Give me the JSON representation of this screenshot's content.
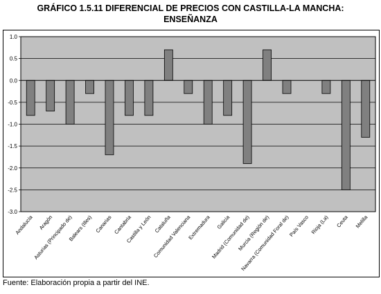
{
  "title_line1": "GRÁFICO 1.5.11 DIFERENCIAL DE PRECIOS CON CASTILLA-LA MANCHA:",
  "title_line2": "ENSEÑANZA",
  "source": "Fuente: Elaboración propia a partir del INE.",
  "colors": {
    "plot_bg": "#c0c0c0",
    "bar": "#808080",
    "axis": "#000000"
  },
  "chart_data": {
    "type": "bar",
    "title": "GRÁFICO 1.5.11 DIFERENCIAL DE PRECIOS CON CASTILLA-LA MANCHA: ENSEÑANZA",
    "xlabel": "",
    "ylabel": "",
    "ylim": [
      -3.0,
      1.0
    ],
    "yticks": [
      1.0,
      0.5,
      0.0,
      -0.5,
      -1.0,
      -1.5,
      -2.0,
      -2.5,
      -3.0
    ],
    "ytick_labels": [
      "1.0",
      "0.5",
      "0.0",
      "-0.5",
      "-1.0",
      "-1.5",
      "-2.0",
      "-2.5",
      "-3.0"
    ],
    "grid": true,
    "legend": "none",
    "categories": [
      "Andalucía",
      "Aragón",
      "Asturias (Principado de)",
      "Balears (Illes)",
      "Canarias",
      "Cantabria",
      "Castilla y León",
      "Cataluña",
      "Comunidad Valenciana",
      "Extremadura",
      "Galicia",
      "Madrid (Comunidad de)",
      "Murcia (Región de)",
      "Navarra (Comunidad Foral de)",
      "País Vasco",
      "Rioja (La)",
      "Ceuta",
      "Melilla"
    ],
    "values": [
      -0.8,
      -0.7,
      -1.0,
      -0.3,
      -1.7,
      -0.8,
      -0.8,
      0.7,
      -0.3,
      -1.0,
      -0.8,
      -1.9,
      0.7,
      -0.3,
      0.0,
      -0.3,
      -2.5,
      -1.3
    ]
  }
}
